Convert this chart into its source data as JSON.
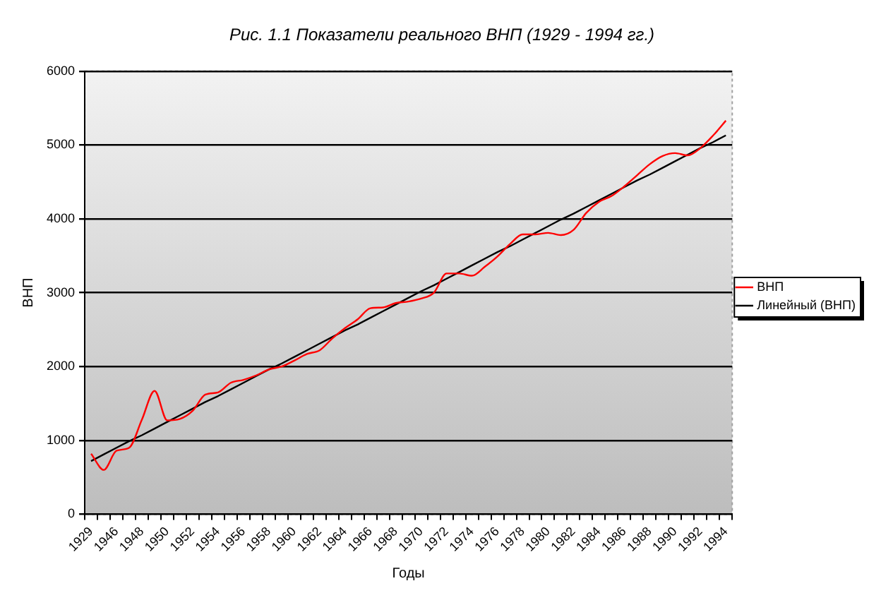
{
  "chart_data": {
    "type": "line",
    "title": "Рис. 1.1 Показатели реального ВНП (1929 - 1994 гг.)",
    "xlabel": "Годы",
    "ylabel": "ВНП",
    "categories": [
      "1929",
      null,
      "1946",
      null,
      "1948",
      null,
      "1950",
      null,
      "1952",
      null,
      "1954",
      null,
      "1956",
      null,
      "1958",
      null,
      "1960",
      null,
      "1962",
      null,
      "1964",
      null,
      "1966",
      null,
      "1968",
      null,
      "1970",
      null,
      "1972",
      null,
      "1974",
      null,
      "1976",
      null,
      "1978",
      null,
      "1980",
      null,
      "1982",
      null,
      "1984",
      null,
      "1986",
      null,
      "1988",
      null,
      "1990",
      null,
      "1992",
      null,
      "1994"
    ],
    "series": [
      {
        "name": "ВНП",
        "color": "#ff0000",
        "values": [
          820,
          600,
          860,
          900,
          1280,
          1670,
          1270,
          1290,
          1400,
          1620,
          1650,
          1780,
          1820,
          1880,
          1960,
          2000,
          2080,
          2170,
          2220,
          2380,
          2520,
          2640,
          2790,
          2800,
          2860,
          2880,
          2920,
          3000,
          3260,
          3260,
          3230,
          3350,
          3490,
          3660,
          3790,
          3790,
          3810,
          3780,
          3850,
          4080,
          4230,
          4310,
          4440,
          4590,
          4740,
          4850,
          4890,
          4860,
          4960,
          5130,
          5330
        ]
      },
      {
        "name": "Линейный (ВНП)",
        "color": "#000000",
        "values": [
          720,
          810,
          900,
          990,
          1070,
          1160,
          1250,
          1340,
          1430,
          1520,
          1600,
          1690,
          1780,
          1870,
          1960,
          2040,
          2130,
          2220,
          2310,
          2400,
          2490,
          2570,
          2660,
          2750,
          2840,
          2930,
          3020,
          3100,
          3190,
          3280,
          3370,
          3460,
          3550,
          3630,
          3720,
          3810,
          3900,
          3990,
          4070,
          4160,
          4250,
          4340,
          4430,
          4520,
          4600,
          4690,
          4780,
          4870,
          4960,
          5040,
          5130
        ]
      }
    ],
    "ylim": [
      0,
      6000
    ],
    "yticks": [
      0,
      1000,
      2000,
      3000,
      4000,
      5000,
      6000
    ],
    "grid": "y",
    "legend": "right",
    "marker": "none",
    "line_style": "solid"
  }
}
